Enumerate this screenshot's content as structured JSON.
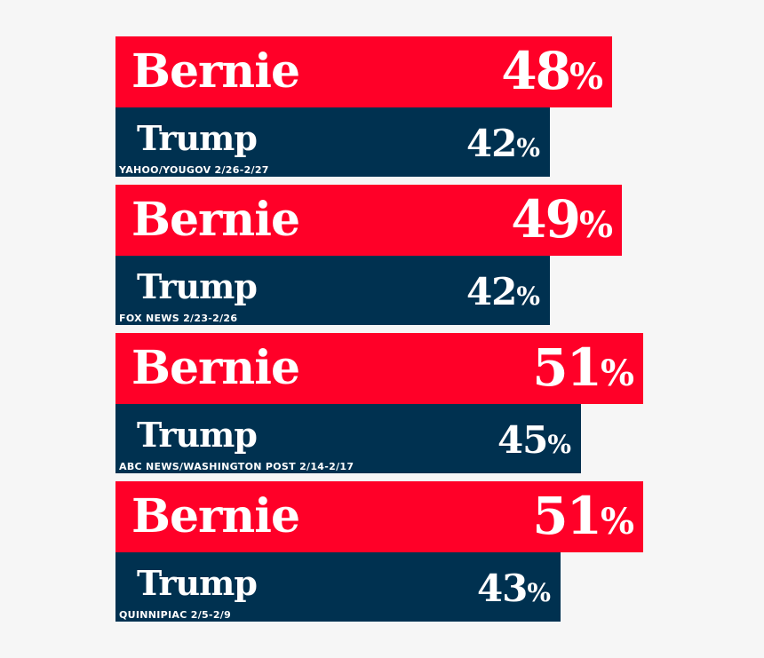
{
  "colors": {
    "candidate_a": "#ff0028",
    "candidate_b": "#003150",
    "background": "#f6f6f6",
    "text": "#ffffff"
  },
  "percent_sign": "%",
  "chart_data": {
    "type": "bar",
    "orientation": "horizontal",
    "groups": [
      {
        "poll": "YAHOO/YOUGOV 2/26-2/27",
        "a": {
          "name": "Bernie",
          "value": 48
        },
        "b": {
          "name": "Trump",
          "value": 42
        }
      },
      {
        "poll": "FOX NEWS 2/23-2/26",
        "a": {
          "name": "Bernie",
          "value": 49
        },
        "b": {
          "name": "Trump",
          "value": 42
        }
      },
      {
        "poll": "ABC NEWS/WASHINGTON POST 2/14-2/17",
        "a": {
          "name": "Bernie",
          "value": 51
        },
        "b": {
          "name": "Trump",
          "value": 45
        }
      },
      {
        "poll": "QUINNIPIAC 2/5-2/9",
        "a": {
          "name": "Bernie",
          "value": 51
        },
        "b": {
          "name": "Trump",
          "value": 43
        }
      }
    ]
  }
}
